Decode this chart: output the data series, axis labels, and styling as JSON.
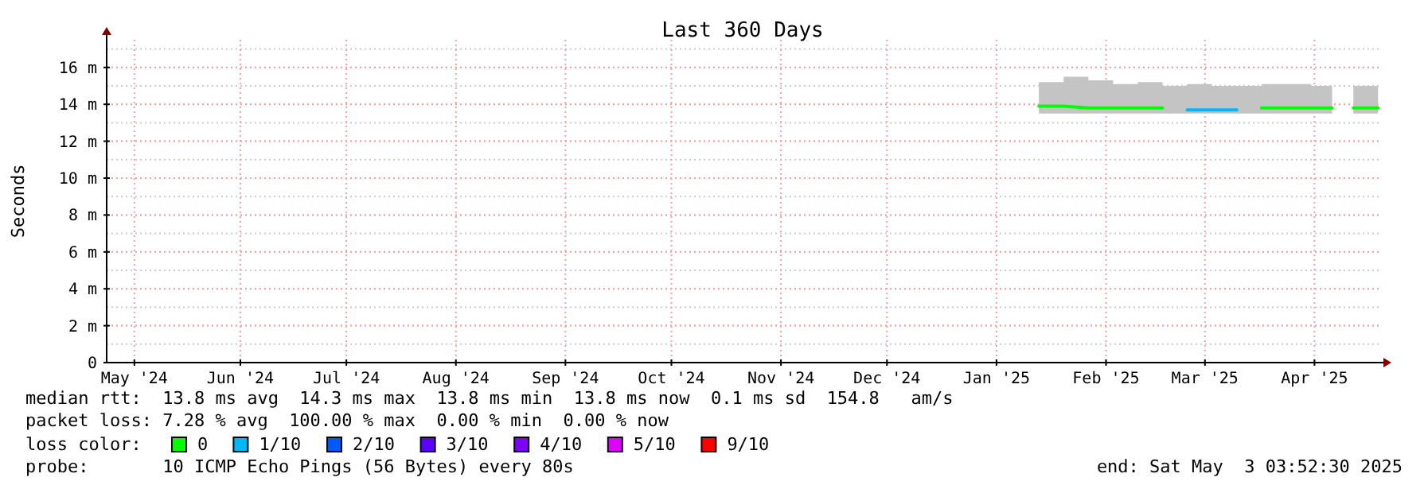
{
  "chart_data": {
    "type": "line",
    "title": "Last 360 Days",
    "ylabel": "Seconds",
    "legend_title": "loss color:",
    "legend": "bottom",
    "grid": true,
    "marker": "none",
    "line_style": "solid",
    "x": [
      "2025-01-27",
      "2025-02-03",
      "2025-02-10",
      "2025-02-17",
      "2025-02-24",
      "2025-03-03",
      "2025-03-10",
      "2025-03-17",
      "2025-03-24",
      "2025-03-31",
      "2025-04-07",
      "2025-04-14",
      "2025-04-20",
      "2025-04-23",
      "2025-04-26",
      "2025-05-03"
    ],
    "xlim": [
      "2024-05-08T03:52",
      "2025-05-03T03:52"
    ],
    "xticks": [
      {
        "value": "2024-05-16",
        "label": "May '24"
      },
      {
        "value": "2024-06-15",
        "label": "Jun '24"
      },
      {
        "value": "2024-07-15",
        "label": "Jul '24"
      },
      {
        "value": "2024-08-15",
        "label": "Aug '24"
      },
      {
        "value": "2024-09-15",
        "label": "Sep '24"
      },
      {
        "value": "2024-10-15",
        "label": "Oct '24"
      },
      {
        "value": "2024-11-15",
        "label": "Nov '24"
      },
      {
        "value": "2024-12-15",
        "label": "Dec '24"
      },
      {
        "value": "2025-01-15",
        "label": "Jan '25"
      },
      {
        "value": "2025-02-15",
        "label": "Feb '25"
      },
      {
        "value": "2025-03-15",
        "label": "Mar '25"
      },
      {
        "value": "2025-04-15",
        "label": "Apr '25"
      }
    ],
    "ylim": [
      0,
      17.5
    ],
    "yticks": [
      0,
      {
        "value": 2,
        "label": "2 m"
      },
      {
        "value": 4,
        "label": "4 m"
      },
      {
        "value": 6,
        "label": "6 m"
      },
      {
        "value": 8,
        "label": "8 m"
      },
      {
        "value": 10,
        "label": "10 m"
      },
      {
        "value": 12,
        "label": "12 m"
      },
      {
        "value": 14,
        "label": "14 m"
      },
      {
        "value": 16,
        "label": "16 m"
      }
    ],
    "series": [
      {
        "color": "#c4c4c4",
        "values": [
          null,
          null,
          null,
          null,
          null,
          null,
          null,
          null,
          null,
          null,
          null,
          null,
          null,
          null,
          null,
          null
        ],
        "lower": [
          13.5,
          13.5,
          13.5,
          13.5,
          13.5,
          13.5,
          13.5,
          13.5,
          13.5,
          13.5,
          13.5,
          13.5,
          13.5,
          null,
          13.5,
          13.5
        ],
        "upper": [
          15.2,
          15.5,
          15.3,
          15.1,
          15.2,
          15,
          15.1,
          15,
          15,
          15.1,
          15.1,
          15,
          15.2,
          null,
          15,
          15.1
        ]
      },
      {
        "name": "0",
        "color": "#00ff00",
        "values": [
          13.9,
          13.9,
          13.8,
          13.8,
          13.8,
          13.8,
          null,
          null,
          null,
          13.8,
          13.8,
          13.8,
          13.8,
          null,
          13.8,
          13.8
        ]
      },
      {
        "name": "1/10",
        "color": "#00b8ff",
        "values": [
          null,
          null,
          null,
          null,
          null,
          null,
          13.7,
          13.7,
          13.7,
          null,
          null,
          null,
          null,
          null,
          null,
          null
        ]
      },
      {
        "name": "2/10",
        "color": "#0059ff",
        "values": [
          null,
          null,
          null,
          null,
          null,
          null,
          null,
          null,
          null,
          null,
          null,
          null,
          null,
          null,
          null,
          null
        ]
      },
      {
        "name": "3/10",
        "color": "#5e00ff",
        "values": [
          null,
          null,
          null,
          null,
          null,
          null,
          null,
          null,
          null,
          null,
          null,
          null,
          null,
          null,
          null,
          null
        ]
      },
      {
        "name": "4/10",
        "color": "#7e00ff",
        "values": [
          null,
          null,
          null,
          null,
          null,
          null,
          null,
          null,
          null,
          null,
          null,
          null,
          null,
          null,
          null,
          null
        ]
      },
      {
        "name": "5/10",
        "color": "#dd00ff",
        "values": [
          null,
          null,
          null,
          null,
          null,
          null,
          null,
          null,
          null,
          null,
          null,
          null,
          null,
          null,
          null,
          null
        ]
      },
      {
        "name": "9/10",
        "color": "#ff0000",
        "values": [
          null,
          null,
          null,
          null,
          null,
          null,
          null,
          null,
          null,
          null,
          null,
          null,
          null,
          null,
          null,
          null
        ]
      }
    ],
    "annotations": [
      "median rtt:  13.8 ms avg  14.3 ms max  13.8 ms min  13.8 ms now  0.1 ms sd  154.8   am/s",
      "packet loss: 7.28 % avg  100.00 % max  0.00 % min  0.00 % now",
      "probe:       10 ICMP Echo Pings (56 Bytes) every 80s",
      "end: Sat May  3 03:52:30 2025"
    ]
  }
}
